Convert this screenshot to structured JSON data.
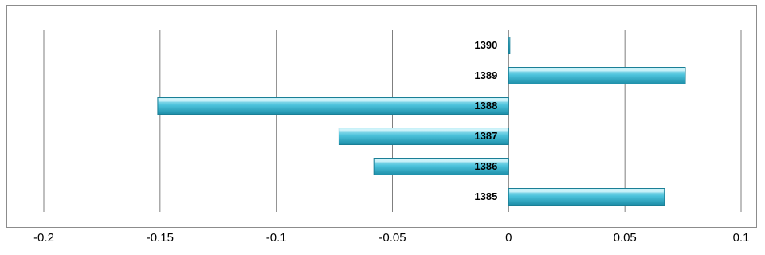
{
  "chart_data": {
    "type": "bar",
    "orientation": "horizontal",
    "categories": [
      "1390",
      "1389",
      "1388",
      "1387",
      "1386",
      "1385"
    ],
    "values": [
      0.0,
      0.076,
      -0.151,
      -0.073,
      -0.058,
      0.067
    ],
    "xlim": [
      -0.2,
      0.1
    ],
    "x_ticks": [
      "-0.2",
      "-0.15",
      "-0.1",
      "-0.05",
      "0",
      "0.05",
      "0.1"
    ],
    "x_tick_values": [
      -0.2,
      -0.15,
      -0.1,
      -0.05,
      0,
      0.05,
      0.1
    ],
    "grid": "vertical",
    "legend": "none",
    "title": "",
    "xlabel": "",
    "ylabel": ""
  },
  "colors": {
    "bar_fill_top": "#c6f0f8",
    "bar_fill_mid": "#4cc3dc",
    "bar_fill_bottom": "#1d8ea8",
    "bar_edge": "#1a7f96",
    "grid": "#7f7f7f",
    "frame": "#8c8c8c"
  }
}
